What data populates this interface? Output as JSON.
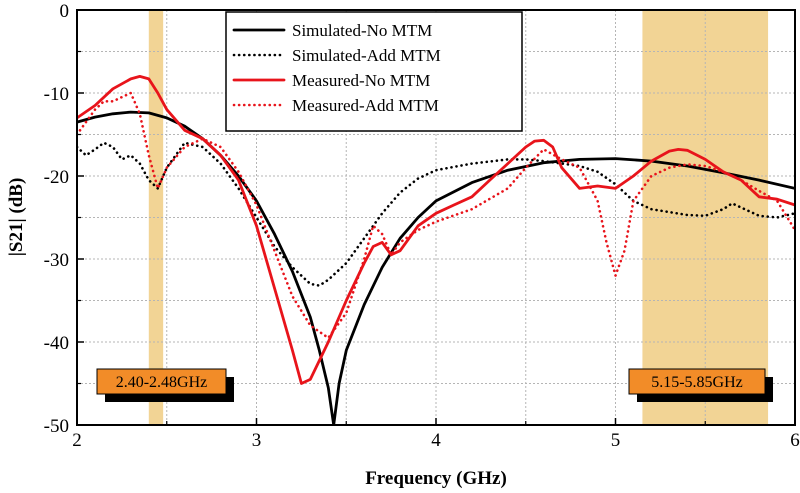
{
  "chart_data": {
    "type": "line",
    "title": "",
    "xlabel": "Frequency (GHz)",
    "ylabel": "|S21| (dB)",
    "xlim": [
      2,
      6
    ],
    "ylim": [
      -50,
      0
    ],
    "xticks": [
      2,
      3,
      4,
      5,
      6
    ],
    "yticks": [
      0,
      -10,
      -20,
      -30,
      -40,
      -50
    ],
    "xtick_labels": [
      "2",
      "3",
      "4",
      "5",
      "6"
    ],
    "ytick_labels": [
      "0",
      "-10",
      "-20",
      "-30",
      "-40",
      "-50"
    ],
    "grid": true,
    "legend_position": "top-center",
    "colors": {
      "band": "#f2d495",
      "black": "#000000",
      "red": "#e8141b",
      "label_bg": "#f28c28"
    },
    "bands": [
      {
        "label": "2.40-2.48GHz",
        "x": [
          2.4,
          2.48
        ]
      },
      {
        "label": "5.15-5.85GHz",
        "x": [
          5.15,
          5.85
        ]
      }
    ],
    "series": [
      {
        "name": "Simulated-No MTM",
        "color": "#000000",
        "style": "solid",
        "x": [
          2.0,
          2.1,
          2.2,
          2.3,
          2.4,
          2.5,
          2.6,
          2.7,
          2.8,
          2.9,
          3.0,
          3.1,
          3.2,
          3.3,
          3.35,
          3.4,
          3.43,
          3.46,
          3.5,
          3.6,
          3.7,
          3.8,
          3.9,
          4.0,
          4.2,
          4.4,
          4.6,
          4.8,
          5.0,
          5.2,
          5.4,
          5.6,
          5.8,
          6.0
        ],
        "y": [
          -13.5,
          -12.9,
          -12.5,
          -12.3,
          -12.4,
          -13.0,
          -14.0,
          -15.5,
          -17.5,
          -20.0,
          -23.0,
          -27.0,
          -31.5,
          -37.0,
          -41.0,
          -45.5,
          -50.0,
          -45.0,
          -41.0,
          -35.5,
          -31.0,
          -27.5,
          -25.0,
          -23.0,
          -20.8,
          -19.3,
          -18.4,
          -18.0,
          -17.9,
          -18.2,
          -18.8,
          -19.6,
          -20.5,
          -21.5
        ]
      },
      {
        "name": "Simulated-Add MTM",
        "color": "#000000",
        "style": "dotted",
        "x": [
          2.0,
          2.05,
          2.1,
          2.15,
          2.2,
          2.25,
          2.3,
          2.35,
          2.4,
          2.45,
          2.5,
          2.6,
          2.7,
          2.8,
          2.9,
          3.0,
          3.1,
          3.2,
          3.3,
          3.35,
          3.4,
          3.5,
          3.6,
          3.7,
          3.8,
          3.9,
          4.0,
          4.2,
          4.4,
          4.5,
          4.6,
          4.8,
          4.9,
          5.0,
          5.1,
          5.2,
          5.4,
          5.5,
          5.6,
          5.65,
          5.7,
          5.8,
          5.9,
          6.0
        ],
        "y": [
          -16.5,
          -17.5,
          -16.8,
          -16.0,
          -16.5,
          -18.0,
          -17.5,
          -18.5,
          -20.5,
          -21.5,
          -19.0,
          -16.0,
          -16.5,
          -18.5,
          -21.5,
          -25.0,
          -28.5,
          -31.0,
          -33.0,
          -33.2,
          -32.5,
          -30.5,
          -27.5,
          -24.5,
          -22.0,
          -20.3,
          -19.3,
          -18.5,
          -18.0,
          -18.0,
          -18.2,
          -18.8,
          -19.5,
          -21.0,
          -23.0,
          -24.0,
          -24.7,
          -24.8,
          -24.0,
          -23.3,
          -23.8,
          -24.8,
          -25.0,
          -24.5
        ]
      },
      {
        "name": "Measured-No MTM",
        "color": "#e8141b",
        "style": "solid",
        "x": [
          2.0,
          2.1,
          2.2,
          2.3,
          2.35,
          2.4,
          2.45,
          2.5,
          2.6,
          2.7,
          2.8,
          2.9,
          3.0,
          3.1,
          3.2,
          3.25,
          3.3,
          3.4,
          3.5,
          3.6,
          3.65,
          3.7,
          3.75,
          3.8,
          3.9,
          4.0,
          4.1,
          4.2,
          4.3,
          4.4,
          4.5,
          4.55,
          4.6,
          4.65,
          4.7,
          4.8,
          4.9,
          5.0,
          5.1,
          5.2,
          5.3,
          5.35,
          5.4,
          5.5,
          5.6,
          5.7,
          5.8,
          5.9,
          6.0
        ],
        "y": [
          -13.0,
          -11.5,
          -9.5,
          -8.3,
          -8.0,
          -8.3,
          -10.0,
          -12.0,
          -14.5,
          -15.5,
          -17.5,
          -20.5,
          -26.0,
          -33.5,
          -41.0,
          -45.0,
          -44.5,
          -40.0,
          -35.0,
          -30.5,
          -28.5,
          -28.0,
          -29.5,
          -29.0,
          -26.0,
          -24.5,
          -23.5,
          -22.5,
          -20.5,
          -18.5,
          -16.5,
          -15.8,
          -15.7,
          -16.5,
          -19.0,
          -21.5,
          -21.2,
          -21.5,
          -20.0,
          -18.2,
          -17.0,
          -16.8,
          -16.9,
          -18.0,
          -19.5,
          -20.5,
          -22.5,
          -22.8,
          -23.5
        ]
      },
      {
        "name": "Measured-Add MTM",
        "color": "#e8141b",
        "style": "dotted",
        "x": [
          2.0,
          2.05,
          2.1,
          2.15,
          2.2,
          2.25,
          2.3,
          2.35,
          2.4,
          2.45,
          2.5,
          2.6,
          2.7,
          2.8,
          2.9,
          3.0,
          3.1,
          3.2,
          3.3,
          3.4,
          3.5,
          3.6,
          3.65,
          3.7,
          3.75,
          3.8,
          3.9,
          4.0,
          4.2,
          4.4,
          4.5,
          4.6,
          4.7,
          4.8,
          4.9,
          4.95,
          5.0,
          5.05,
          5.1,
          5.2,
          5.3,
          5.4,
          5.5,
          5.6,
          5.7,
          5.8,
          5.9,
          6.0
        ],
        "y": [
          -15.0,
          -13.5,
          -12.0,
          -11.0,
          -11.0,
          -10.5,
          -10.0,
          -12.5,
          -17.5,
          -21.5,
          -19.0,
          -16.5,
          -15.5,
          -16.5,
          -19.5,
          -23.5,
          -29.0,
          -34.5,
          -38.0,
          -39.5,
          -36.5,
          -30.0,
          -26.0,
          -27.0,
          -29.5,
          -28.0,
          -26.5,
          -25.5,
          -24.0,
          -21.5,
          -19.0,
          -16.8,
          -18.0,
          -19.0,
          -23.0,
          -28.0,
          -32.0,
          -29.0,
          -23.0,
          -20.0,
          -19.0,
          -18.6,
          -18.8,
          -19.5,
          -20.5,
          -21.8,
          -23.0,
          -26.5
        ]
      }
    ]
  }
}
